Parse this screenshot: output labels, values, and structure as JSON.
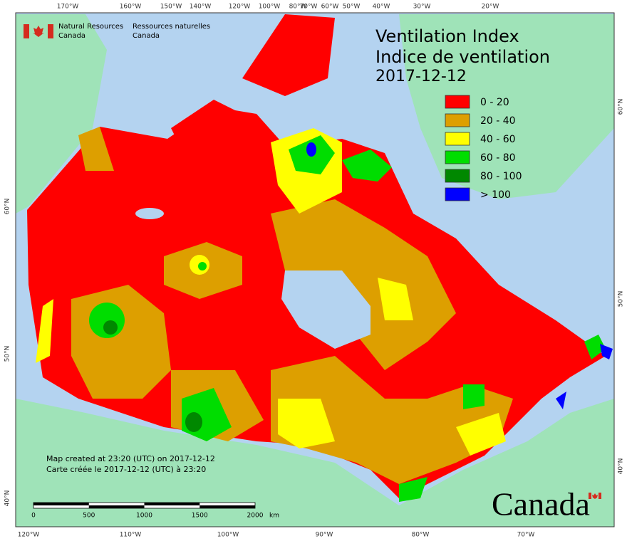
{
  "header": {
    "title": "Ventilation Index",
    "title_fr": "Indice de ventilation",
    "date": "2017-12-12"
  },
  "agency": {
    "en": [
      "Natural Resources",
      "Canada"
    ],
    "fr": [
      "Ressources naturelles",
      "Canada"
    ]
  },
  "legend": [
    {
      "label": "0 - 20",
      "color": "#ff0000"
    },
    {
      "label": "20 - 40",
      "color": "#dd9f00"
    },
    {
      "label": "40 - 60",
      "color": "#ffff00"
    },
    {
      "label": "60 - 80",
      "color": "#00dd00"
    },
    {
      "label": "80 - 100",
      "color": "#008800"
    },
    {
      "label": "> 100",
      "color": "#0000ff"
    }
  ],
  "graticule": {
    "top": [
      "170°W",
      "160°W",
      "150°W",
      "140°W",
      "120°W",
      "100°W",
      "80°W",
      "70°W",
      "60°W",
      "50°W",
      "40°W",
      "30°W",
      "20°W"
    ],
    "bottom": [
      "120°W",
      "110°W",
      "100°W",
      "90°W",
      "80°W",
      "70°W"
    ],
    "left": [
      "60°N",
      "50°N",
      "40°N"
    ],
    "right": [
      "60°N",
      "50°N",
      "40°N"
    ]
  },
  "notes": [
    "Map created at 23:20 (UTC) on 2017-12-12",
    "Carte créée le 2017-12-12 (UTC) à 23:20"
  ],
  "scale_bar": {
    "ticks": [
      0,
      500,
      1000,
      1500,
      2000
    ],
    "unit": "km"
  },
  "wordmark": "Canada"
}
